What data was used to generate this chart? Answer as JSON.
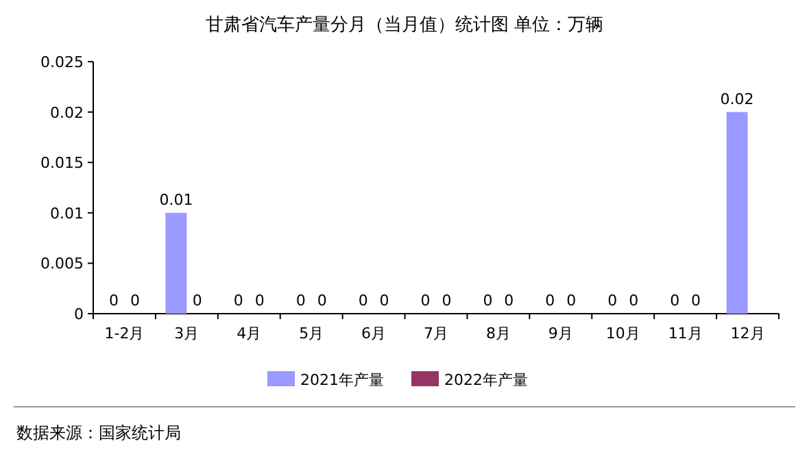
{
  "chart_data": {
    "type": "bar",
    "title": "甘肃省汽车产量分月（当月值）统计图 单位：万辆",
    "categories": [
      "1-2月",
      "3月",
      "4月",
      "5月",
      "6月",
      "7月",
      "8月",
      "9月",
      "10月",
      "11月",
      "12月"
    ],
    "series": [
      {
        "name": "2021年产量",
        "color": "#9999ff",
        "values": [
          0,
          0.01,
          0,
          0,
          0,
          0,
          0,
          0,
          0,
          0,
          0.02
        ]
      },
      {
        "name": "2022年产量",
        "color": "#993366",
        "values": [
          0,
          0,
          0,
          0,
          0,
          0,
          0,
          0,
          0,
          0,
          null
        ]
      }
    ],
    "ylim": [
      0,
      0.025
    ],
    "yticks": [
      0,
      0.005,
      0.01,
      0.015,
      0.02,
      0.025
    ],
    "data_labels": true,
    "legend": "bottom",
    "annotations": [
      "数据来源：国家统计局"
    ]
  }
}
